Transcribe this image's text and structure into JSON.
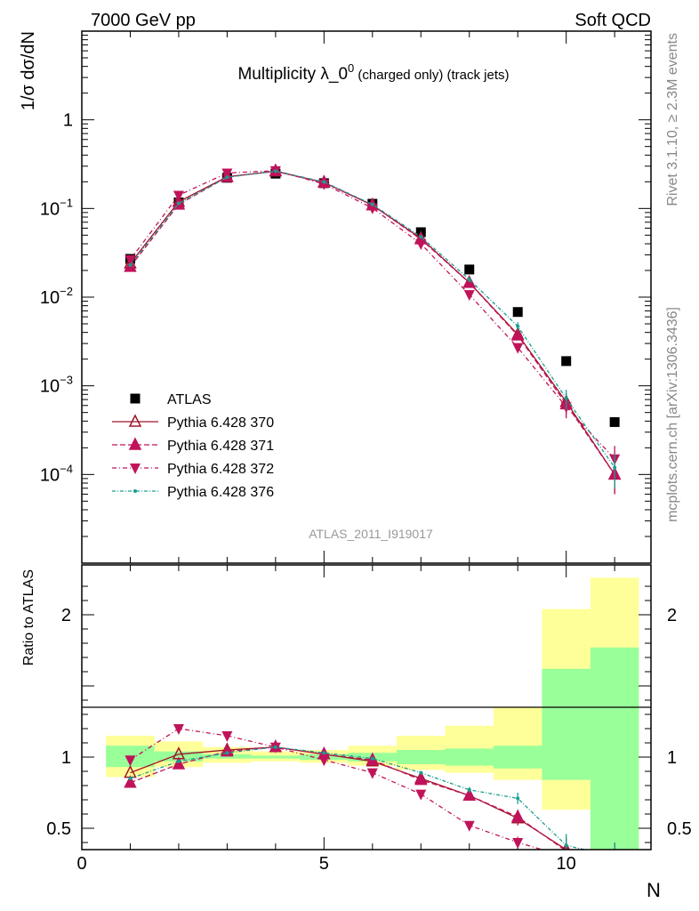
{
  "header": {
    "left": "7000 GeV pp",
    "right": "Soft QCD"
  },
  "chart_data": [
    {
      "type": "scatter",
      "title_main": "Multiplicity λ_0",
      "title_sup": "0",
      "title_rest": " (charged only) (track jets)",
      "ylabel": "1/σ dσ/dN",
      "yscale": "log",
      "ylim": [
        1e-05,
        10
      ],
      "xlim": [
        0,
        11.75
      ],
      "ytick_labels": [
        {
          "value": 1,
          "base": "1",
          "exp": ""
        },
        {
          "value": 0.1,
          "base": "10",
          "exp": "−1"
        },
        {
          "value": 0.01,
          "base": "10",
          "exp": "−2"
        },
        {
          "value": 0.001,
          "base": "10",
          "exp": "−3"
        },
        {
          "value": 0.0001,
          "base": "10",
          "exp": "−4"
        }
      ],
      "watermark": "ATLAS_2011_I919017",
      "side_label_top": "Rivet 3.1.10, ≥ 2.3M events",
      "side_label_bottom": "mcplots.cern.ch [arXiv:1306.3436]",
      "legend_position": "lower-left",
      "x": [
        1,
        2,
        3,
        4,
        5,
        6,
        7,
        8,
        9,
        10,
        11
      ],
      "series": [
        {
          "name": "ATLAS",
          "color": "#000000",
          "marker": "square",
          "values": [
            0.027,
            0.117,
            0.222,
            0.247,
            0.193,
            0.113,
            0.054,
            0.0205,
            0.0068,
            0.0019,
            0.00039
          ]
        },
        {
          "name": "Pythia 6.428 370",
          "color": "#a0162a",
          "marker": "triangle-open",
          "dash": "",
          "values": [
            0.024,
            0.119,
            0.228,
            0.262,
            0.196,
            0.109,
            0.046,
            0.0146,
            0.0038,
            0.00066,
            0.0001
          ],
          "errors": [
            0,
            0,
            0,
            0,
            0,
            0,
            0,
            0,
            0.0004,
            0.00016,
            4e-05
          ]
        },
        {
          "name": "Pythia 6.428 371",
          "color": "#c0135a",
          "marker": "triangle",
          "dash": "6,3",
          "values": [
            0.022,
            0.111,
            0.226,
            0.265,
            0.197,
            0.109,
            0.045,
            0.0145,
            0.0037,
            0.00062,
            0.0001
          ],
          "errors": [
            0,
            0,
            0,
            0,
            0,
            0,
            0,
            0,
            0.0004,
            0.00015,
            4e-05
          ]
        },
        {
          "name": "Pythia 6.428 372",
          "color": "#c0135a",
          "marker": "triangle-down",
          "dash": "5,3,1,3",
          "values": [
            0.0265,
            0.141,
            0.251,
            0.267,
            0.189,
            0.101,
            0.04,
            0.0107,
            0.0027,
            0.00058,
            0.00015
          ],
          "errors": [
            0,
            0,
            0,
            0,
            0,
            0,
            0,
            0,
            0.0003,
            0.00015,
            6e-05
          ]
        },
        {
          "name": "Pythia 6.428 376",
          "color": "#1a9e90",
          "marker": "dot",
          "dash": "4,2,1,2",
          "values": [
            0.023,
            0.114,
            0.225,
            0.264,
            0.199,
            0.111,
            0.048,
            0.0158,
            0.0047,
            0.00072,
            0.00012
          ],
          "errors": [
            0,
            0,
            0,
            0,
            0,
            0,
            0,
            0.001,
            0.0005,
            0.00018,
            5e-05
          ]
        }
      ]
    },
    {
      "type": "line",
      "ylabel": "Ratio to ATLAS",
      "xlabel": "N",
      "ylim": [
        0.35,
        2.35
      ],
      "xlim": [
        0,
        11.75
      ],
      "xticks": [
        0,
        5,
        10
      ],
      "yticks": [
        0.5,
        1,
        2
      ],
      "band_edges": [
        0.5,
        1.5,
        2.5,
        3.5,
        4.5,
        5.5,
        6.5,
        7.5,
        8.5,
        9.5,
        10.5,
        11.5
      ],
      "band_inner": [
        {
          "lo": 0.93,
          "hi": 1.08
        },
        {
          "lo": 0.97,
          "hi": 1.04
        },
        {
          "lo": 0.99,
          "hi": 1.02
        },
        {
          "lo": 0.99,
          "hi": 1.01
        },
        {
          "lo": 0.98,
          "hi": 1.02
        },
        {
          "lo": 0.97,
          "hi": 1.03
        },
        {
          "lo": 0.95,
          "hi": 1.05
        },
        {
          "lo": 0.94,
          "hi": 1.06
        },
        {
          "lo": 0.92,
          "hi": 1.08
        },
        {
          "lo": 0.84,
          "hi": 1.62
        },
        {
          "lo": 0.35,
          "hi": 1.77
        }
      ],
      "band_outer": [
        {
          "lo": 0.86,
          "hi": 1.15
        },
        {
          "lo": 0.93,
          "hi": 1.11
        },
        {
          "lo": 0.96,
          "hi": 1.07
        },
        {
          "lo": 0.97,
          "hi": 1.04
        },
        {
          "lo": 0.96,
          "hi": 1.05
        },
        {
          "lo": 0.94,
          "hi": 1.08
        },
        {
          "lo": 0.91,
          "hi": 1.15
        },
        {
          "lo": 0.89,
          "hi": 1.22
        },
        {
          "lo": 0.84,
          "hi": 1.35
        },
        {
          "lo": 0.63,
          "hi": 2.04
        },
        {
          "lo": 0.35,
          "hi": 2.26
        }
      ],
      "x": [
        1,
        2,
        3,
        4,
        5,
        6,
        7,
        8,
        9,
        10,
        11
      ],
      "series": [
        {
          "name": "Pythia 6.428 370",
          "values": [
            0.89,
            1.02,
            1.05,
            1.07,
            1.02,
            0.97,
            0.85,
            0.73,
            0.57,
            0.35,
            0.25
          ],
          "errors": [
            0,
            0,
            0,
            0,
            0,
            0,
            0,
            0.02,
            0.05,
            0.08,
            0.1
          ]
        },
        {
          "name": "Pythia 6.428 371",
          "values": [
            0.82,
            0.95,
            1.04,
            1.07,
            1.02,
            0.98,
            0.84,
            0.73,
            0.58,
            0.34,
            0.25
          ],
          "errors": [
            0,
            0,
            0,
            0,
            0,
            0,
            0,
            0.02,
            0.05,
            0.08,
            0.1
          ]
        },
        {
          "name": "Pythia 6.428 372",
          "values": [
            0.98,
            1.2,
            1.15,
            1.07,
            0.98,
            0.89,
            0.74,
            0.52,
            0.4,
            0.3,
            0.3
          ],
          "errors": [
            0,
            0,
            0,
            0,
            0,
            0,
            0,
            0.02,
            0.04,
            0.08,
            0.1
          ]
        },
        {
          "name": "Pythia 6.428 376",
          "values": [
            0.85,
            0.97,
            1.03,
            1.07,
            1.03,
            0.99,
            0.89,
            0.77,
            0.71,
            0.38,
            0.3
          ],
          "errors": [
            0,
            0,
            0,
            0,
            0,
            0,
            0,
            0.02,
            0.04,
            0.08,
            0.1
          ]
        }
      ]
    }
  ],
  "style": {
    "outer_band_color": "#ffff99",
    "inner_band_color": "#99ff99"
  }
}
